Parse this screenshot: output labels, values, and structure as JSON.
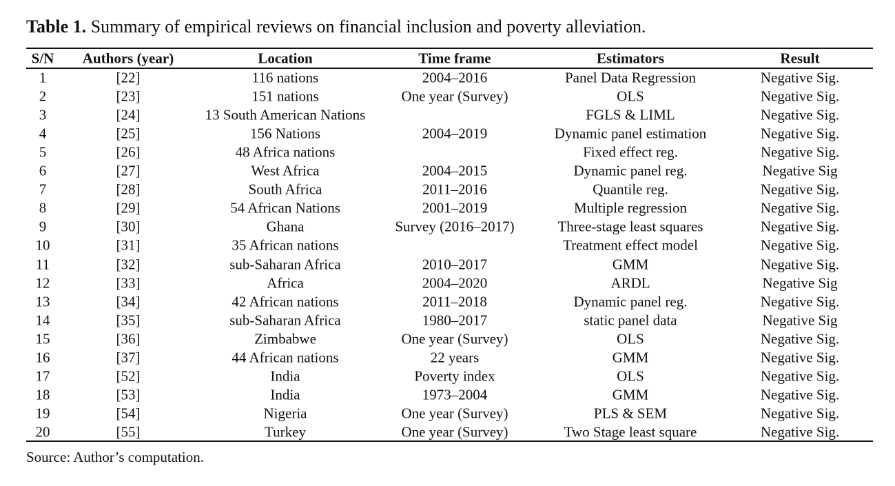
{
  "caption": {
    "label": "Table 1.",
    "text": "Summary of empirical reviews on financial inclusion and poverty alleviation."
  },
  "table": {
    "headers": [
      "S/N",
      "Authors (year)",
      "Location",
      "Time frame",
      "Estimators",
      "Result"
    ],
    "rows": [
      [
        "1",
        "[22]",
        "116 nations",
        "2004–2016",
        "Panel Data Regression",
        "Negative Sig."
      ],
      [
        "2",
        "[23]",
        "151 nations",
        "One year (Survey)",
        "OLS",
        "Negative Sig."
      ],
      [
        "3",
        "[24]",
        "13 South American Nations",
        null,
        "FGLS & LIML",
        "Negative Sig."
      ],
      [
        "4",
        "[25]",
        "156 Nations",
        "2004–2019",
        "Dynamic panel estimation",
        "Negative Sig."
      ],
      [
        "5",
        "[26]",
        "48 Africa nations",
        null,
        "Fixed effect reg.",
        "Negative Sig."
      ],
      [
        "6",
        "[27]",
        "West Africa",
        "2004–2015",
        "Dynamic panel reg.",
        "Negative Sig"
      ],
      [
        "7",
        "[28]",
        "South Africa",
        "2011–2016",
        "Quantile reg.",
        "Negative Sig."
      ],
      [
        "8",
        "[29]",
        "54 African Nations",
        "2001–2019",
        "Multiple regression",
        "Negative Sig."
      ],
      [
        "9",
        "[30]",
        "Ghana",
        "Survey (2016–2017)",
        "Three-stage least squares",
        "Negative Sig."
      ],
      [
        "10",
        "[31]",
        "35 African nations",
        null,
        "Treatment effect model",
        "Negative Sig."
      ],
      [
        "11",
        "[32]",
        "sub-Saharan Africa",
        "2010–2017",
        "GMM",
        "Negative Sig."
      ],
      [
        "12",
        "[33]",
        "Africa",
        "2004–2020",
        "ARDL",
        "Negative Sig"
      ],
      [
        "13",
        "[34]",
        "42 African nations",
        "2011–2018",
        "Dynamic panel reg.",
        "Negative Sig."
      ],
      [
        "14",
        "[35]",
        "sub-Saharan Africa",
        "1980–2017",
        "static panel data",
        "Negative Sig"
      ],
      [
        "15",
        "[36]",
        "Zimbabwe",
        "One year (Survey)",
        "OLS",
        "Negative Sig."
      ],
      [
        "16",
        "[37]",
        "44 African nations",
        "22 years",
        "GMM",
        "Negative Sig."
      ],
      [
        "17",
        "[52]",
        "India",
        "Poverty index",
        "OLS",
        "Negative Sig."
      ],
      [
        "18",
        "[53]",
        "India",
        "1973–2004",
        "GMM",
        "Negative Sig."
      ],
      [
        "19",
        "[54]",
        "Nigeria",
        "One year (Survey)",
        "PLS & SEM",
        "Negative Sig."
      ],
      [
        "20",
        "[55]",
        "Turkey",
        "One year (Survey)",
        "Two Stage least square",
        "Negative Sig."
      ]
    ]
  },
  "source": "Source: Author’s computation."
}
